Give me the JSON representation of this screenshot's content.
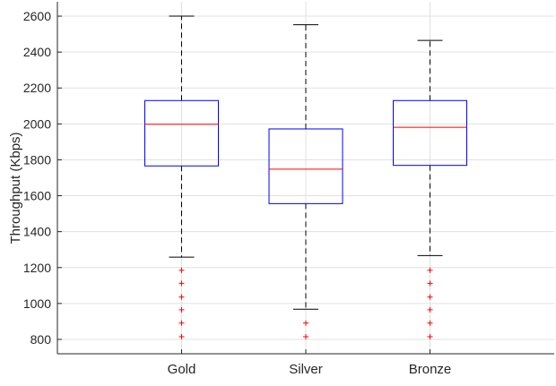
{
  "chart_data": {
    "type": "box",
    "title": "",
    "xlabel": "",
    "ylabel": "Throughput (Kbps)",
    "ylim": [
      720,
      2680
    ],
    "grid": true,
    "yticks": [
      800,
      1000,
      1200,
      1400,
      1600,
      1800,
      2000,
      2200,
      2400,
      2600
    ],
    "categories": [
      "Gold",
      "Silver",
      "Bronze"
    ],
    "boxes": [
      {
        "category": "Gold",
        "whisker_low": 1258,
        "q1": 1766,
        "median": 1998,
        "q3": 2130,
        "whisker_high": 2600,
        "outliers": [
          1185,
          1112,
          1036,
          965,
          891,
          815
        ]
      },
      {
        "category": "Silver",
        "whisker_low": 968,
        "q1": 1556,
        "median": 1748,
        "q3": 1972,
        "whisker_high": 2552,
        "outliers": [
          891,
          815
        ]
      },
      {
        "category": "Bronze",
        "whisker_low": 1267,
        "q1": 1769,
        "median": 1981,
        "q3": 2130,
        "whisker_high": 2465,
        "outliers": [
          1185,
          1112,
          1036,
          965,
          891,
          815
        ]
      }
    ],
    "colors": {
      "box": "#0000ff",
      "median": "#ff0000",
      "whisker": "#000000",
      "outlier": "#ff0000",
      "grid": "#e0e0e0",
      "axis": "#262626"
    }
  }
}
